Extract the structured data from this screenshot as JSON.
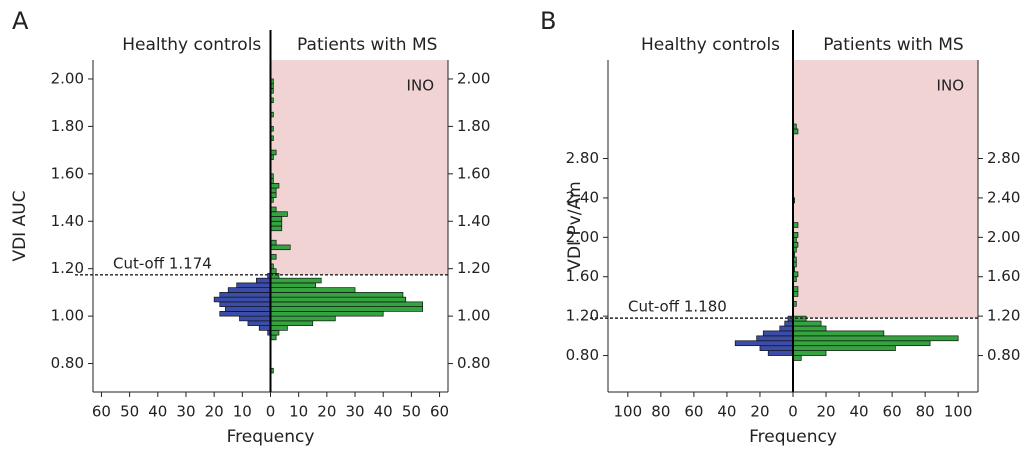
{
  "chart_data": [
    {
      "type": "pyramid-histogram",
      "panel": "A",
      "ylabel": "VDI AUC",
      "xlabel": "Frequency",
      "cutoff": 1.174,
      "cutoff_label": "Cut-off 1.174",
      "region_label": "INO",
      "region_color": "#f2d3d3",
      "bins": [
        0.76,
        0.78,
        0.8,
        0.82,
        0.84,
        0.86,
        0.88,
        0.9,
        0.92,
        0.94,
        0.96,
        0.98,
        1.0,
        1.02,
        1.04,
        1.06,
        1.08,
        1.1,
        1.12,
        1.14,
        1.16,
        1.18,
        1.2,
        1.22,
        1.24,
        1.26,
        1.28,
        1.3,
        1.32,
        1.34,
        1.36,
        1.38,
        1.4,
        1.42,
        1.44,
        1.46,
        1.48,
        1.5,
        1.52,
        1.54,
        1.56,
        1.58,
        1.6,
        1.62,
        1.64,
        1.66,
        1.68,
        1.7,
        1.72,
        1.74,
        1.76,
        1.78,
        1.8,
        1.82,
        1.84,
        1.86,
        1.88,
        1.9,
        1.92,
        1.94,
        1.96,
        1.98,
        2.0
      ],
      "series": [
        {
          "name": "Healthy controls",
          "side": "left",
          "color": "#3b4da8",
          "values": [
            0,
            0,
            0,
            0,
            0,
            0,
            0,
            0,
            1,
            4,
            8,
            11,
            18,
            16,
            18,
            20,
            18,
            15,
            12,
            5,
            1,
            0,
            0,
            0,
            0,
            0,
            0,
            0,
            0,
            0,
            0,
            0,
            0,
            0,
            0,
            0,
            0,
            0,
            0,
            0,
            0,
            0,
            0,
            0,
            0,
            0,
            0,
            0,
            0,
            0,
            0,
            0,
            0,
            0,
            0,
            0,
            0,
            0,
            0,
            0,
            0,
            0
          ]
        },
        {
          "name": "Patients with MS",
          "side": "right",
          "color": "#35a440",
          "values": [
            1,
            0,
            0,
            0,
            0,
            0,
            0,
            2,
            3,
            6,
            15,
            23,
            40,
            54,
            54,
            48,
            47,
            30,
            16,
            18,
            3,
            2,
            1,
            0,
            2,
            0,
            7,
            2,
            0,
            0,
            4,
            4,
            4,
            6,
            2,
            0,
            1,
            2,
            2,
            3,
            1,
            1,
            0,
            0,
            0,
            1,
            2,
            0,
            0,
            1,
            0,
            1,
            0,
            0,
            1,
            0,
            0,
            1,
            0,
            1,
            1,
            1
          ]
        }
      ],
      "xlim": [
        -63,
        63
      ],
      "xticks": [
        {
          "value": -60,
          "label": "60"
        },
        {
          "value": -50,
          "label": "50"
        },
        {
          "value": -40,
          "label": "40"
        },
        {
          "value": -30,
          "label": "30"
        },
        {
          "value": -20,
          "label": "20"
        },
        {
          "value": -10,
          "label": "10"
        },
        0,
        10,
        20,
        30,
        40,
        50,
        60
      ],
      "ylim": [
        0.68,
        2.08
      ],
      "yticks": [
        {
          "value": 0.8,
          "label": "0.80"
        },
        {
          "value": 1.0,
          "label": "1.00"
        },
        {
          "value": 1.2,
          "label": "1.20"
        },
        {
          "value": 1.4,
          "label": "1.40"
        },
        {
          "value": 1.6,
          "label": "1.60"
        },
        {
          "value": 1.8,
          "label": "1.80"
        },
        {
          "value": 2.0,
          "label": "2.00"
        }
      ]
    },
    {
      "type": "pyramid-histogram",
      "panel": "B",
      "ylabel": "VDI Pv/Am",
      "xlabel": "Frequency",
      "cutoff": 1.18,
      "cutoff_label": "Cut-off 1.180",
      "region_label": "INO",
      "region_color": "#f2d3d3",
      "bins": [
        0.75,
        0.8,
        0.85,
        0.9,
        0.95,
        1.0,
        1.05,
        1.1,
        1.15,
        1.2,
        1.25,
        1.3,
        1.35,
        1.4,
        1.45,
        1.5,
        1.55,
        1.6,
        1.65,
        1.7,
        1.75,
        1.8,
        1.85,
        1.9,
        1.95,
        2.0,
        2.05,
        2.1,
        2.15,
        2.2,
        2.25,
        2.3,
        2.35,
        2.4,
        2.45,
        2.5,
        2.55,
        2.6,
        2.65,
        2.7,
        2.75,
        2.8,
        2.85,
        2.9,
        2.95,
        3.0,
        3.05,
        3.1,
        3.15,
        3.2,
        3.25
      ],
      "series": [
        {
          "name": "Healthy controls",
          "side": "left",
          "color": "#3b4da8",
          "values": [
            0,
            15,
            20,
            35,
            22,
            18,
            8,
            5,
            3,
            0,
            0,
            0,
            0,
            0,
            0,
            0,
            0,
            0,
            0,
            0,
            0,
            0,
            0,
            0,
            0,
            0,
            0,
            0,
            0,
            0,
            0,
            0,
            0,
            0,
            0,
            0,
            0,
            0,
            0,
            0,
            0,
            0,
            0,
            0,
            0,
            0,
            0,
            0,
            0,
            0
          ]
        },
        {
          "name": "Patients with MS",
          "side": "right",
          "color": "#35a440",
          "values": [
            5,
            20,
            62,
            83,
            100,
            55,
            20,
            17,
            8,
            0,
            0,
            2,
            0,
            3,
            3,
            0,
            2,
            3,
            1,
            2,
            2,
            1,
            2,
            3,
            2,
            3,
            0,
            3,
            0,
            0,
            0,
            0,
            1,
            0,
            0,
            0,
            0,
            0,
            0,
            0,
            0,
            0,
            0,
            0,
            0,
            0,
            3,
            2,
            0,
            0
          ]
        }
      ],
      "xlim": [
        -112,
        112
      ],
      "xticks": [
        {
          "value": -100,
          "label": "100"
        },
        {
          "value": -80,
          "label": "80"
        },
        {
          "value": -60,
          "label": "60"
        },
        {
          "value": -40,
          "label": "40"
        },
        {
          "value": -20,
          "label": "20"
        },
        0,
        20,
        40,
        60,
        80,
        100
      ],
      "ylim": [
        0.43,
        3.8
      ],
      "yticks": [
        {
          "value": 0.8,
          "label": "0.80"
        },
        {
          "value": 1.2,
          "label": "1.20"
        },
        {
          "value": 1.6,
          "label": "1.60"
        },
        {
          "value": 2.0,
          "label": "2.00"
        },
        {
          "value": 2.4,
          "label": "2.40"
        },
        {
          "value": 2.8,
          "label": "2.80"
        }
      ]
    }
  ]
}
